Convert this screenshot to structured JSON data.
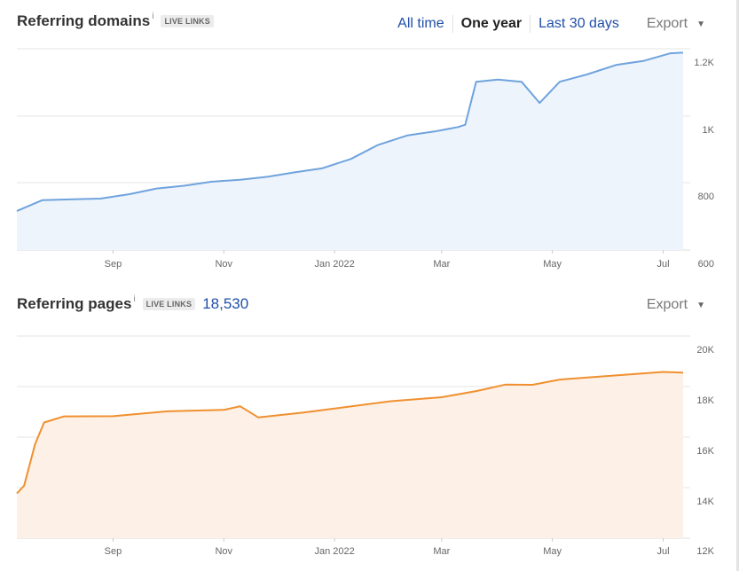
{
  "domains": {
    "title": "Referring domains",
    "info": "i",
    "badge": "LIVE LINKS",
    "ranges": [
      "All time",
      "One year",
      "Last 30 days"
    ],
    "active_range": "One year",
    "export_label": "Export",
    "line_color": "#6fa3dd",
    "fill_color": "#eef4fc"
  },
  "pages": {
    "title": "Referring pages",
    "info": "i",
    "badge": "LIVE LINKS",
    "count": "18,530",
    "export_label": "Export",
    "line_color": "#f0902f",
    "fill_color": "#fdf0e6"
  },
  "chart_data": [
    {
      "type": "area",
      "title": "Referring domains",
      "x_tick_labels": [
        "Sep",
        "Nov",
        "Jan 2022",
        "Mar",
        "May",
        "Jul"
      ],
      "y_tick_labels": [
        "1.2K",
        "1K",
        "800",
        "600"
      ],
      "ylim": [
        600,
        1200
      ],
      "x_range": [
        "2021-07-10",
        "2022-07-12"
      ],
      "grid": true,
      "x": [
        "2021-07-10",
        "2021-07-24",
        "2021-08-10",
        "2021-08-25",
        "2021-09-10",
        "2021-09-25",
        "2021-10-10",
        "2021-10-25",
        "2021-11-10",
        "2021-11-25",
        "2021-12-10",
        "2021-12-25",
        "2022-01-10",
        "2022-01-25",
        "2022-02-10",
        "2022-02-25",
        "2022-03-10",
        "2022-03-14",
        "2022-03-20",
        "2022-04-01",
        "2022-04-14",
        "2022-04-24",
        "2022-05-05",
        "2022-05-20",
        "2022-06-05",
        "2022-06-20",
        "2022-07-05",
        "2022-07-12"
      ],
      "series": [
        {
          "values": [
            715,
            750,
            750,
            755,
            765,
            785,
            790,
            805,
            808,
            820,
            830,
            845,
            870,
            915,
            940,
            955,
            965,
            975,
            1100,
            1110,
            1100,
            1040,
            1100,
            1125,
            1150,
            1165,
            1185,
            1190
          ]
        }
      ]
    },
    {
      "type": "area",
      "title": "Referring pages",
      "x_tick_labels": [
        "Sep",
        "Nov",
        "Jan 2022",
        "Mar",
        "May",
        "Jul"
      ],
      "y_tick_labels": [
        "20K",
        "18K",
        "16K",
        "14K",
        "12K"
      ],
      "ylim": [
        12000,
        20000
      ],
      "x_range": [
        "2021-07-10",
        "2022-07-12"
      ],
      "grid": true,
      "x": [
        "2021-07-10",
        "2021-07-14",
        "2021-07-20",
        "2021-07-25",
        "2021-08-05",
        "2021-09-01",
        "2021-10-01",
        "2021-11-01",
        "2021-11-10",
        "2021-11-20",
        "2021-12-15",
        "2022-01-01",
        "2022-02-01",
        "2022-03-01",
        "2022-03-20",
        "2022-04-05",
        "2022-04-20",
        "2022-05-05",
        "2022-06-01",
        "2022-07-01",
        "2022-07-12"
      ],
      "series": [
        {
          "values": [
            13750,
            14100,
            15700,
            16600,
            16800,
            16850,
            17000,
            17100,
            17200,
            16800,
            16950,
            17150,
            17400,
            17600,
            17800,
            18100,
            18050,
            18300,
            18400,
            18600,
            18530
          ]
        }
      ]
    }
  ]
}
